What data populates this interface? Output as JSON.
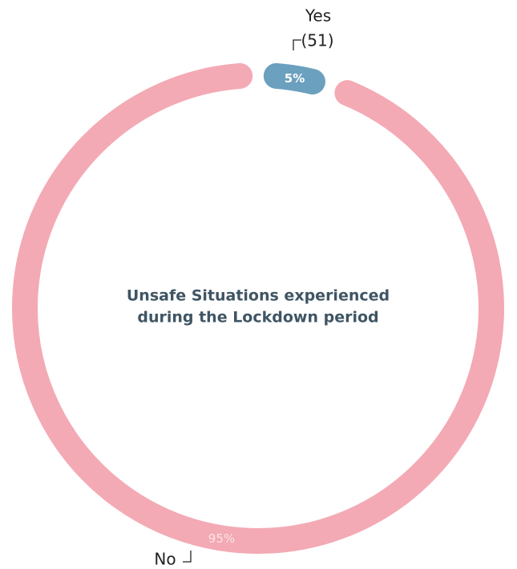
{
  "chart_data": {
    "type": "donut",
    "title": [
      "Unsafe Situations experienced",
      "during the Lockdown period"
    ],
    "categories": [
      "Yes",
      "No"
    ],
    "values": [
      5,
      95
    ],
    "value_labels": [
      "5%",
      "95%"
    ],
    "count_labels": [
      "(51)",
      null
    ],
    "colors": [
      "#6ba0be",
      "#f3aab4"
    ]
  }
}
